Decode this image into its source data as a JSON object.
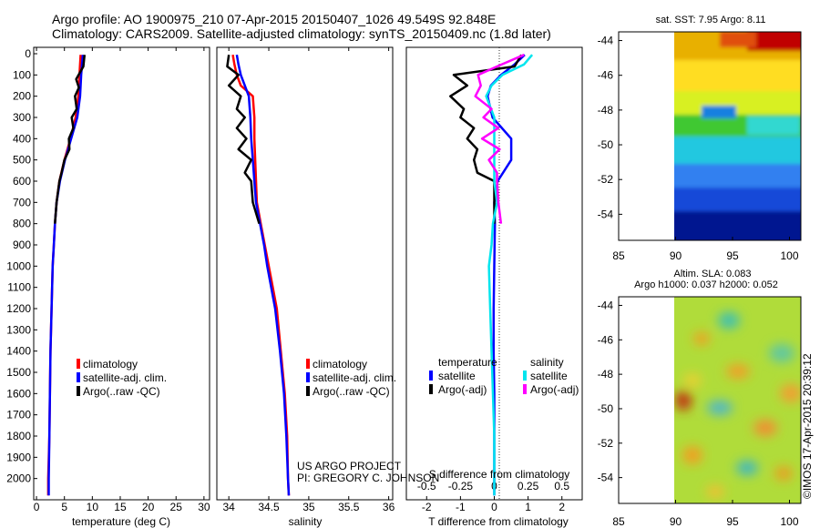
{
  "header": {
    "line1": "Argo profile: AO 1900975_210 07-Apr-2015 20150407_1026 49.549S 92.848E",
    "line2": "Climatology: CARS2009. Satellite-adjusted climatology: synTS_20150409.nc (1.8d later)"
  },
  "colors": {
    "climatology": "#ff0000",
    "satellite": "#0000ff",
    "argo": "#000000",
    "sal_satellite": "#00e5ee",
    "sal_argo": "#ff00ff"
  },
  "chart_data": [
    {
      "type": "line",
      "id": "temperature",
      "xlabel": "temperature (deg C)",
      "xlim": [
        -0.5,
        31
      ],
      "ylim": [
        2100,
        0
      ],
      "xticks": [
        0,
        5,
        10,
        15,
        20,
        25,
        30
      ],
      "yticks": [
        0,
        100,
        200,
        300,
        400,
        500,
        600,
        700,
        800,
        900,
        1000,
        1100,
        1200,
        1300,
        1400,
        1500,
        1600,
        1700,
        1800,
        1900,
        2000
      ],
      "legend": [
        "climatology",
        "satellite-adj. clim.",
        "Argo(..raw -QC)"
      ],
      "series": [
        {
          "name": "climatology",
          "color": "#ff0000",
          "depth": [
            5,
            100,
            200,
            300,
            400,
            500,
            600,
            700,
            800,
            900,
            1000,
            1200,
            1400,
            1600,
            1800,
            2000,
            2080
          ],
          "values": [
            7.9,
            7.7,
            7.5,
            7.0,
            6.1,
            5.0,
            4.1,
            3.6,
            3.3,
            3.1,
            2.9,
            2.7,
            2.5,
            2.4,
            2.3,
            2.1,
            2.1
          ]
        },
        {
          "name": "satellite",
          "color": "#0000ff",
          "depth": [
            5,
            100,
            200,
            300,
            400,
            500,
            600,
            700,
            800,
            900,
            1000,
            1200,
            1400,
            1600,
            1800,
            2000,
            2080
          ],
          "values": [
            8.3,
            8.0,
            7.8,
            7.3,
            6.2,
            5.1,
            4.2,
            3.6,
            3.3,
            3.1,
            2.9,
            2.7,
            2.5,
            2.4,
            2.3,
            2.2,
            2.2
          ]
        },
        {
          "name": "argo",
          "color": "#000000",
          "depth": [
            5,
            60,
            120,
            160,
            200,
            260,
            300,
            350,
            400,
            450,
            500,
            560,
            600,
            700,
            800
          ],
          "values": [
            8.6,
            8.4,
            7.1,
            7.6,
            6.9,
            7.2,
            6.3,
            6.6,
            5.8,
            5.9,
            5.0,
            4.5,
            4.1,
            3.6,
            3.3
          ]
        }
      ]
    },
    {
      "type": "line",
      "id": "salinity",
      "xlabel": "salinity",
      "xlim": [
        33.85,
        36.05
      ],
      "ylim": [
        2100,
        0
      ],
      "xticks": [
        34,
        34.5,
        35,
        35.5,
        36
      ],
      "legend": [
        "climatology",
        "satellite-adj. clim.",
        "Argo(..raw -QC)"
      ],
      "annotation": [
        "US ARGO PROJECT",
        "PI: GREGORY C. JOHNSON"
      ],
      "series": [
        {
          "name": "climatology",
          "color": "#ff0000",
          "depth": [
            5,
            50,
            100,
            150,
            200,
            300,
            400,
            500,
            600,
            700,
            800,
            900,
            1000,
            1200,
            1400,
            1600,
            1800,
            2000,
            2080
          ],
          "values": [
            34.05,
            34.07,
            34.1,
            34.15,
            34.3,
            34.32,
            34.32,
            34.33,
            34.34,
            34.35,
            34.4,
            34.45,
            34.5,
            34.6,
            34.65,
            34.7,
            34.73,
            34.74,
            34.75
          ]
        },
        {
          "name": "satellite",
          "color": "#0000ff",
          "depth": [
            5,
            50,
            100,
            150,
            200,
            300,
            400,
            500,
            600,
            700,
            800,
            900,
            1000,
            1200,
            1400,
            1600,
            1800,
            2000,
            2080
          ],
          "values": [
            34.1,
            34.12,
            34.15,
            34.2,
            34.25,
            34.27,
            34.28,
            34.3,
            34.32,
            34.34,
            34.39,
            34.44,
            34.48,
            34.58,
            34.64,
            34.69,
            34.72,
            34.74,
            34.75
          ]
        },
        {
          "name": "argo",
          "color": "#000000",
          "depth": [
            5,
            60,
            100,
            150,
            200,
            260,
            300,
            350,
            400,
            450,
            500,
            560,
            600,
            700,
            800
          ],
          "values": [
            34.0,
            33.98,
            34.12,
            34.0,
            34.15,
            34.1,
            34.2,
            34.1,
            34.22,
            34.12,
            34.28,
            34.2,
            34.28,
            34.3,
            34.38
          ]
        }
      ]
    },
    {
      "type": "line",
      "id": "difference",
      "xlabel": "T difference from climatology",
      "xlabel2": "S difference from climatology",
      "xlim": [
        -2.6,
        2.6
      ],
      "ylim": [
        2100,
        0
      ],
      "xticks": [
        -2,
        -1,
        0,
        1,
        2
      ],
      "xticks2": [
        "-0.5",
        "-0.25",
        "0",
        "0.25",
        "0.5"
      ],
      "legend_headers": [
        "temperature",
        "salinity"
      ],
      "legend": [
        "satellite",
        "Argo(-adj)",
        "satellite",
        "Argo(-adj)"
      ],
      "series": [
        {
          "name": "T satellite",
          "color": "#0000ff",
          "depth": [
            5,
            50,
            100,
            150,
            200,
            300,
            400,
            500,
            600,
            700,
            800,
            1000,
            1200,
            1400,
            1600,
            1800,
            2000,
            2080
          ],
          "values": [
            0.9,
            0.6,
            0.2,
            -0.1,
            -0.2,
            -0.05,
            0.5,
            0.5,
            0.1,
            0.0,
            0.02,
            0.0,
            -0.02,
            -0.02,
            0.0,
            0.0,
            0.0,
            0.0
          ]
        },
        {
          "name": "T argo",
          "color": "#000000",
          "depth": [
            5,
            60,
            100,
            150,
            200,
            260,
            300,
            350,
            400,
            450,
            500,
            560,
            600,
            700,
            800
          ],
          "values": [
            0.8,
            0.6,
            -1.2,
            -0.8,
            -1.3,
            -0.9,
            -1.0,
            -0.6,
            -0.8,
            -0.5,
            -0.6,
            -0.5,
            0.0,
            0.0,
            0.0
          ]
        },
        {
          "name": "S satellite",
          "color": "#00e5ee",
          "depth": [
            5,
            50,
            100,
            150,
            200,
            300,
            400,
            500,
            600,
            700,
            800,
            900,
            1000,
            1200,
            1400,
            1600,
            1800,
            2000,
            2080
          ],
          "values": [
            0.28,
            0.22,
            0.06,
            -0.02,
            -0.06,
            0.0,
            0.0,
            0.0,
            0.0,
            0.02,
            -0.01,
            -0.02,
            -0.04,
            -0.03,
            -0.02,
            -0.01,
            0.0,
            0.0,
            0.0
          ]
        },
        {
          "name": "S argo",
          "color": "#ff00ff",
          "depth": [
            5,
            60,
            100,
            150,
            200,
            260,
            300,
            350,
            400,
            450,
            500,
            560,
            600,
            700,
            800
          ],
          "values": [
            0.22,
            0.02,
            -0.12,
            -0.1,
            -0.14,
            -0.02,
            -0.08,
            0.03,
            -0.09,
            0.04,
            -0.04,
            0.02,
            0.02,
            0.03,
            0.05
          ]
        }
      ]
    },
    {
      "type": "heatmap",
      "id": "sst_map",
      "title": "sat. SST: 7.95 Argo: 8.11",
      "xlim": [
        85,
        101
      ],
      "ylim": [
        -55.5,
        -43.5
      ],
      "xticks": [
        85,
        90,
        95,
        100
      ],
      "yticks": [
        -44,
        -46,
        -48,
        -50,
        -52,
        -54
      ],
      "data_region_lon": [
        90,
        101
      ]
    },
    {
      "type": "heatmap",
      "id": "sla_map",
      "title": "Altim. SLA: 0.083",
      "title2": "Argo h1000: 0.037 h2000: 0.052",
      "xlim": [
        85,
        101
      ],
      "ylim": [
        -55.5,
        -43.5
      ],
      "xticks": [
        85,
        90,
        95,
        100
      ],
      "yticks": [
        -44,
        -46,
        -48,
        -50,
        -52,
        -54
      ],
      "data_region_lon": [
        90,
        101
      ]
    }
  ],
  "watermark": "©IMOS 17-Apr-2015 20:39:12"
}
